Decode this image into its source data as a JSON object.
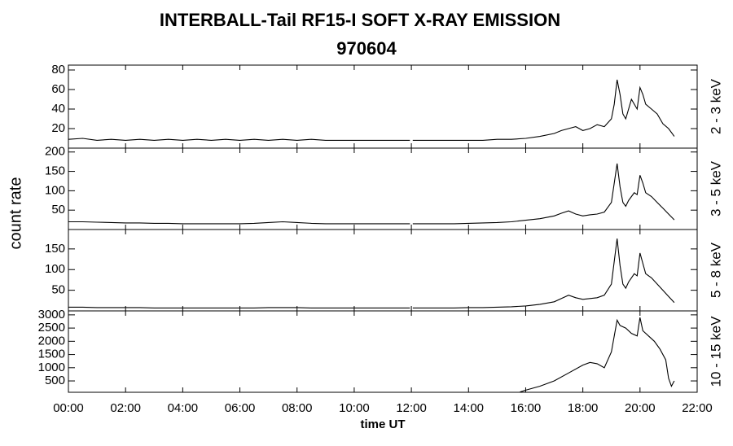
{
  "chart_data": [
    {
      "type": "line",
      "title": "INTERBALL-Tail RF15-I SOFT X-RAY EMISSION",
      "subtitle": "970604",
      "ylabel": "count rate",
      "x": [
        0,
        0.5,
        1,
        1.5,
        2,
        2.5,
        3,
        3.5,
        4,
        4.5,
        5,
        5.5,
        6,
        6.5,
        7,
        7.5,
        8,
        8.5,
        9,
        9.5,
        10,
        10.5,
        11,
        11.5,
        11.95,
        12.0,
        12.05,
        12.5,
        13,
        13.5,
        14,
        14.5,
        15,
        15.5,
        16,
        16.5,
        17,
        17.25,
        17.5,
        17.75,
        18,
        18.25,
        18.5,
        18.75,
        19,
        19.1,
        19.2,
        19.3,
        19.4,
        19.5,
        19.6,
        19.7,
        19.8,
        19.9,
        20,
        20.1,
        20.2,
        20.4,
        20.6,
        20.8,
        21,
        21.2
      ],
      "series": [
        {
          "name": "2 - 3 keV",
          "color": "#000000",
          "values": [
            9,
            10,
            8,
            9,
            8,
            9,
            8,
            9,
            8,
            9,
            8,
            9,
            8,
            9,
            8,
            9,
            8,
            9,
            8,
            8,
            8,
            8,
            8,
            8,
            8,
            null,
            8,
            8,
            8,
            8,
            8,
            8,
            9,
            9,
            10,
            12,
            15,
            18,
            20,
            22,
            18,
            20,
            24,
            22,
            30,
            45,
            70,
            55,
            35,
            30,
            40,
            50,
            45,
            40,
            62,
            55,
            45,
            40,
            35,
            25,
            20,
            12
          ]
        }
      ],
      "ylim": [
        0,
        85
      ],
      "yticks": [
        20,
        40,
        60,
        80
      ]
    },
    {
      "type": "line",
      "x": [
        0,
        0.5,
        1,
        1.5,
        2,
        2.5,
        3,
        3.5,
        4,
        4.5,
        5,
        5.5,
        6,
        6.5,
        7,
        7.5,
        8,
        8.5,
        9,
        9.5,
        10,
        10.5,
        11,
        11.5,
        11.95,
        12.0,
        12.05,
        12.5,
        13,
        13.5,
        14,
        14.5,
        15,
        15.5,
        16,
        16.5,
        17,
        17.25,
        17.5,
        17.75,
        18,
        18.25,
        18.5,
        18.75,
        19,
        19.1,
        19.2,
        19.3,
        19.4,
        19.5,
        19.6,
        19.7,
        19.8,
        19.9,
        20,
        20.1,
        20.2,
        20.4,
        20.6,
        20.8,
        21,
        21.2
      ],
      "series": [
        {
          "name": "3 - 5 keV",
          "color": "#000000",
          "values": [
            20,
            20,
            19,
            18,
            17,
            17,
            16,
            16,
            15,
            15,
            15,
            15,
            15,
            16,
            18,
            20,
            18,
            16,
            15,
            15,
            15,
            15,
            15,
            15,
            15,
            null,
            15,
            15,
            15,
            15,
            16,
            17,
            18,
            20,
            24,
            28,
            35,
            42,
            48,
            40,
            35,
            38,
            40,
            45,
            70,
            120,
            170,
            110,
            70,
            60,
            75,
            85,
            95,
            90,
            140,
            120,
            95,
            85,
            70,
            55,
            40,
            25
          ]
        }
      ],
      "ylim": [
        0,
        210
      ],
      "yticks": [
        50,
        100,
        150,
        200
      ]
    },
    {
      "type": "line",
      "x": [
        0,
        0.5,
        1,
        1.5,
        2,
        2.5,
        3,
        3.5,
        4,
        4.5,
        5,
        5.5,
        6,
        6.5,
        7,
        7.5,
        8,
        8.5,
        9,
        9.5,
        10,
        10.5,
        11,
        11.5,
        11.95,
        12.0,
        12.05,
        12.5,
        13,
        13.5,
        14,
        14.5,
        15,
        15.5,
        16,
        16.5,
        17,
        17.25,
        17.5,
        17.75,
        18,
        18.25,
        18.5,
        18.75,
        19,
        19.1,
        19.2,
        19.3,
        19.4,
        19.5,
        19.6,
        19.7,
        19.8,
        19.9,
        20,
        20.1,
        20.2,
        20.4,
        20.6,
        20.8,
        21,
        21.2
      ],
      "series": [
        {
          "name": "5 - 8 keV",
          "color": "#000000",
          "values": [
            9,
            9,
            8,
            8,
            8,
            8,
            7,
            7,
            7,
            7,
            7,
            7,
            7,
            7,
            8,
            8,
            8,
            7,
            7,
            7,
            7,
            7,
            7,
            7,
            7,
            null,
            7,
            7,
            7,
            7,
            8,
            8,
            9,
            10,
            12,
            16,
            22,
            30,
            38,
            32,
            28,
            30,
            32,
            38,
            65,
            120,
            175,
            110,
            65,
            55,
            70,
            80,
            90,
            85,
            140,
            115,
            90,
            80,
            65,
            50,
            35,
            20
          ]
        }
      ],
      "ylim": [
        0,
        197
      ],
      "yticks": [
        50,
        100,
        150
      ]
    },
    {
      "type": "line",
      "xlabel": "time UT",
      "x": [
        15.8,
        16,
        16.5,
        17,
        17.5,
        18,
        18.25,
        18.5,
        18.75,
        19,
        19.1,
        19.2,
        19.3,
        19.5,
        19.7,
        19.9,
        20,
        20.1,
        20.3,
        20.5,
        20.7,
        20.9,
        21,
        21.1,
        21.2
      ],
      "series": [
        {
          "name": "10 - 15 keV",
          "color": "#000000",
          "values": [
            80,
            150,
            300,
            500,
            800,
            1100,
            1200,
            1150,
            1000,
            1600,
            2200,
            2800,
            2600,
            2500,
            2300,
            2200,
            2900,
            2400,
            2200,
            2000,
            1700,
            1300,
            600,
            300,
            500
          ]
        }
      ],
      "ylim": [
        70,
        3150
      ],
      "yticks": [
        500,
        1000,
        1500,
        2000,
        2500,
        3000
      ],
      "xlim": [
        0,
        22
      ],
      "xticks": [
        {
          "value": 0,
          "label": "00:00"
        },
        {
          "value": 2,
          "label": "02:00"
        },
        {
          "value": 4,
          "label": "04:00"
        },
        {
          "value": 6,
          "label": "06:00"
        },
        {
          "value": 8,
          "label": "08:00"
        },
        {
          "value": 10,
          "label": "10:00"
        },
        {
          "value": 12,
          "label": "12:00"
        },
        {
          "value": 14,
          "label": "14:00"
        },
        {
          "value": 16,
          "label": "16:00"
        },
        {
          "value": 18,
          "label": "18:00"
        },
        {
          "value": 20,
          "label": "20:00"
        },
        {
          "value": 22,
          "label": "22:00"
        }
      ]
    }
  ]
}
